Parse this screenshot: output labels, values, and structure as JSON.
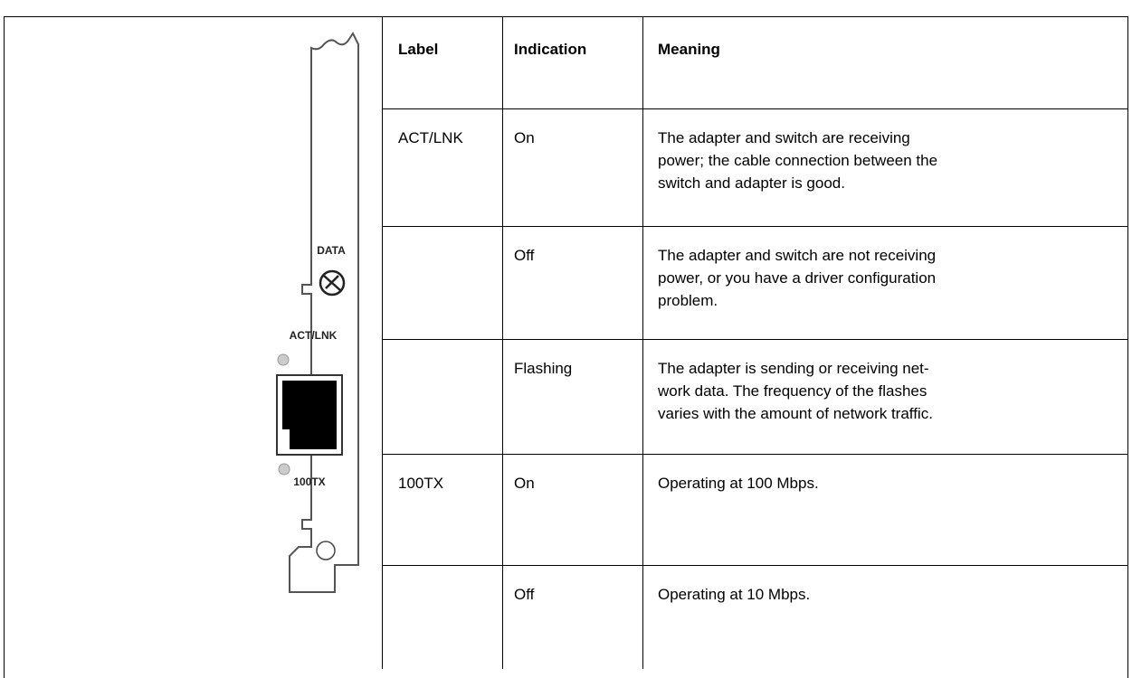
{
  "figure": {
    "labels": [
      "DATA",
      "ACT/LNK",
      "100TX"
    ]
  },
  "table": {
    "header": [
      "Label",
      "Indication",
      "Meaning"
    ],
    "rows": [
      [
        "ACT/LNK",
        "On",
        [
          "The adapter and switch are receiving",
          "power; the cable connection between the",
          "switch and adapter is good."
        ]
      ],
      [
        "",
        "Off",
        [
          "The adapter and switch are not receiving",
          "power, or you have a driver configuration",
          "problem."
        ]
      ],
      [
        "",
        "Flashing",
        [
          "The adapter is sending or receiving net-",
          "work data. The frequency of the flashes",
          "varies with the amount of network traffic."
        ]
      ],
      [
        "100TX",
        "On",
        [
          "Operating at 100 Mbps."
        ]
      ],
      [
        "",
        "Off",
        [
          "Operating at 10 Mbps."
        ]
      ]
    ]
  }
}
